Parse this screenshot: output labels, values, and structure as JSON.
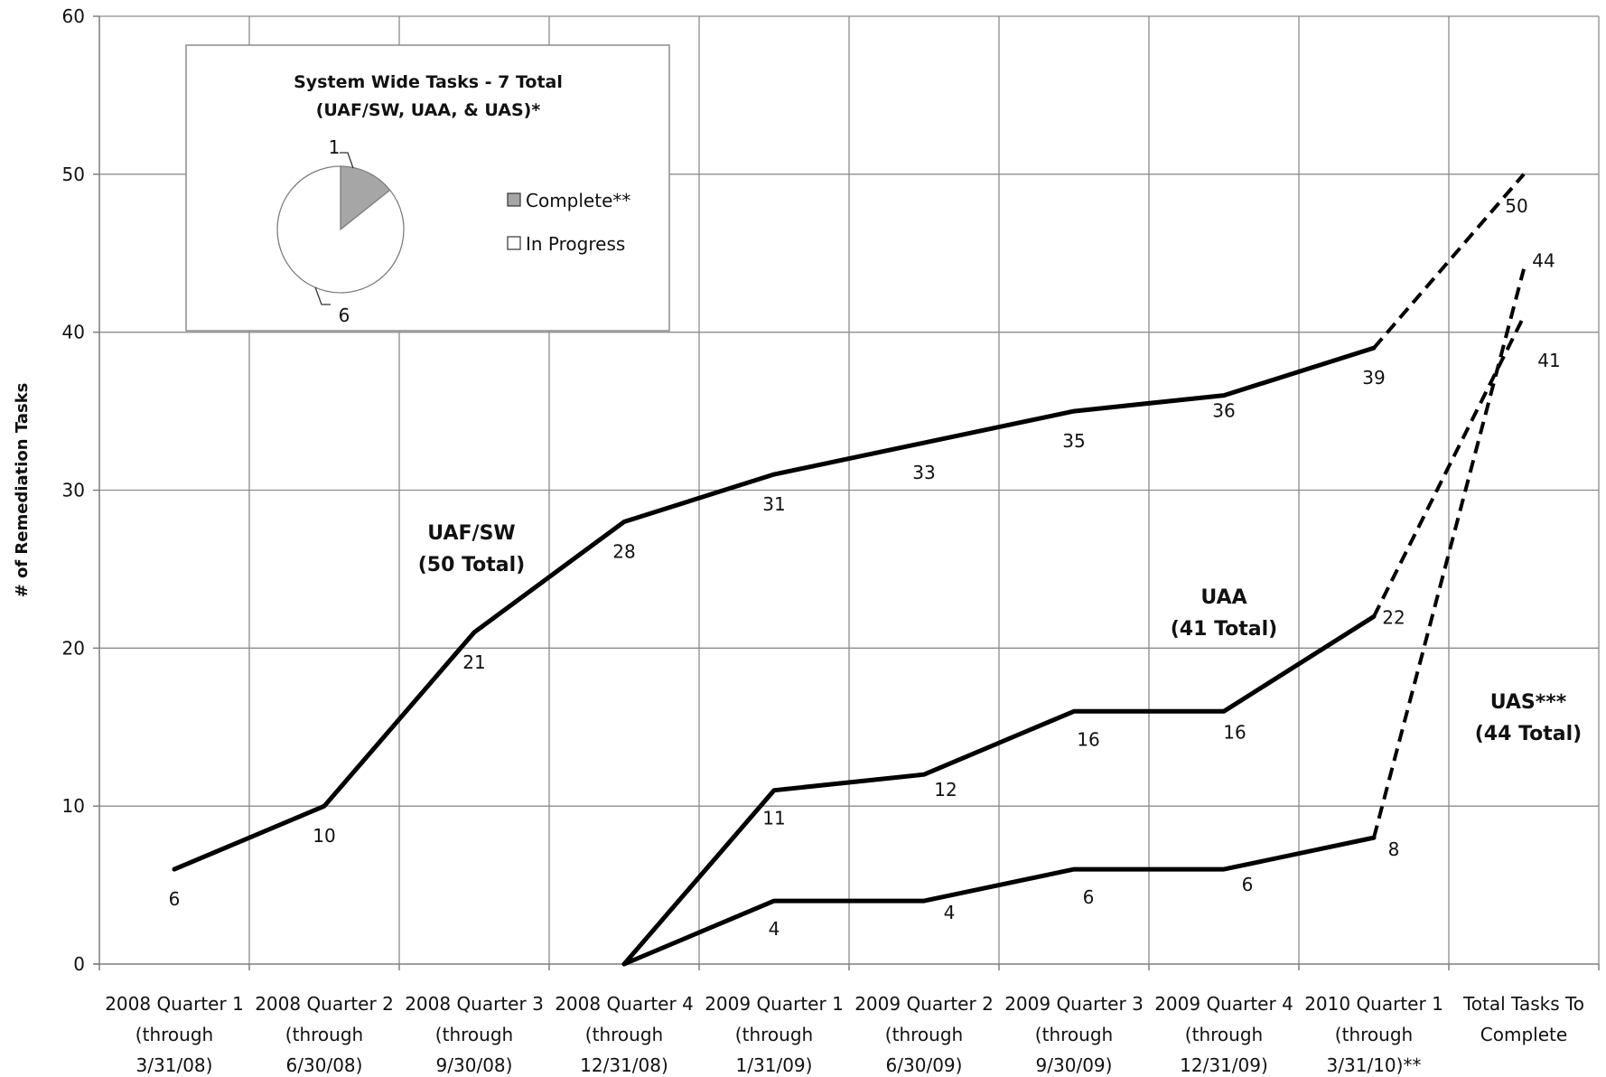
{
  "chart_data": {
    "type": "line",
    "ylabel": "# of Remediation Tasks",
    "ylim": [
      0,
      60
    ],
    "yticks": [
      "0",
      "10",
      "20",
      "30",
      "40",
      "50",
      "60"
    ],
    "grid": true,
    "categories": [
      [
        "2008 Quarter 1",
        "(through",
        "3/31/08)"
      ],
      [
        "2008 Quarter 2",
        "(through",
        "6/30/08)"
      ],
      [
        "2008 Quarter 3",
        "(through",
        "9/30/08)"
      ],
      [
        "2008 Quarter 4",
        "(through",
        "12/31/08)"
      ],
      [
        "2009 Quarter 1",
        "(through",
        "1/31/09)"
      ],
      [
        "2009 Quarter 2",
        "(through",
        "6/30/09)"
      ],
      [
        "2009 Quarter 3",
        "(through",
        "9/30/09)"
      ],
      [
        "2009 Quarter 4",
        "(through",
        "12/31/09)"
      ],
      [
        "2010 Quarter 1",
        "(through",
        "3/31/10)**"
      ],
      [
        "Total Tasks To",
        "Complete"
      ]
    ],
    "series": [
      {
        "name": "UAF/SW",
        "label_lines": [
          "UAF/SW",
          "(50 Total)"
        ],
        "values": [
          6,
          10,
          21,
          28,
          31,
          33,
          35,
          36,
          39,
          50
        ],
        "labels": [
          "6",
          "10",
          "21",
          "28",
          "31",
          "33",
          "35",
          "36",
          "39",
          "50"
        ]
      },
      {
        "name": "UAA",
        "label_lines": [
          "UAA",
          "(41 Total)"
        ],
        "values": [
          null,
          null,
          null,
          0,
          11,
          12,
          16,
          16,
          22,
          41
        ],
        "labels": [
          "",
          "",
          "",
          "",
          "11",
          "12",
          "16",
          "16",
          "22",
          "41"
        ]
      },
      {
        "name": "UAS***",
        "label_lines": [
          "UAS***",
          "(44 Total)"
        ],
        "values": [
          null,
          null,
          null,
          0,
          4,
          4,
          6,
          6,
          8,
          44
        ],
        "labels": [
          "",
          "",
          "",
          "",
          "4",
          "4",
          "6",
          "6",
          "8",
          "44"
        ]
      }
    ],
    "projection_from_index": 8,
    "inset_pie": {
      "title_lines": [
        "System Wide Tasks - 7 Total",
        "(UAF/SW, UAA, & UAS)*"
      ],
      "slices": [
        {
          "label": "Complete**",
          "value": 1,
          "color": "#a6a6a6"
        },
        {
          "label": "In Progress",
          "value": 6,
          "color": "#ffffff"
        }
      ]
    }
  }
}
